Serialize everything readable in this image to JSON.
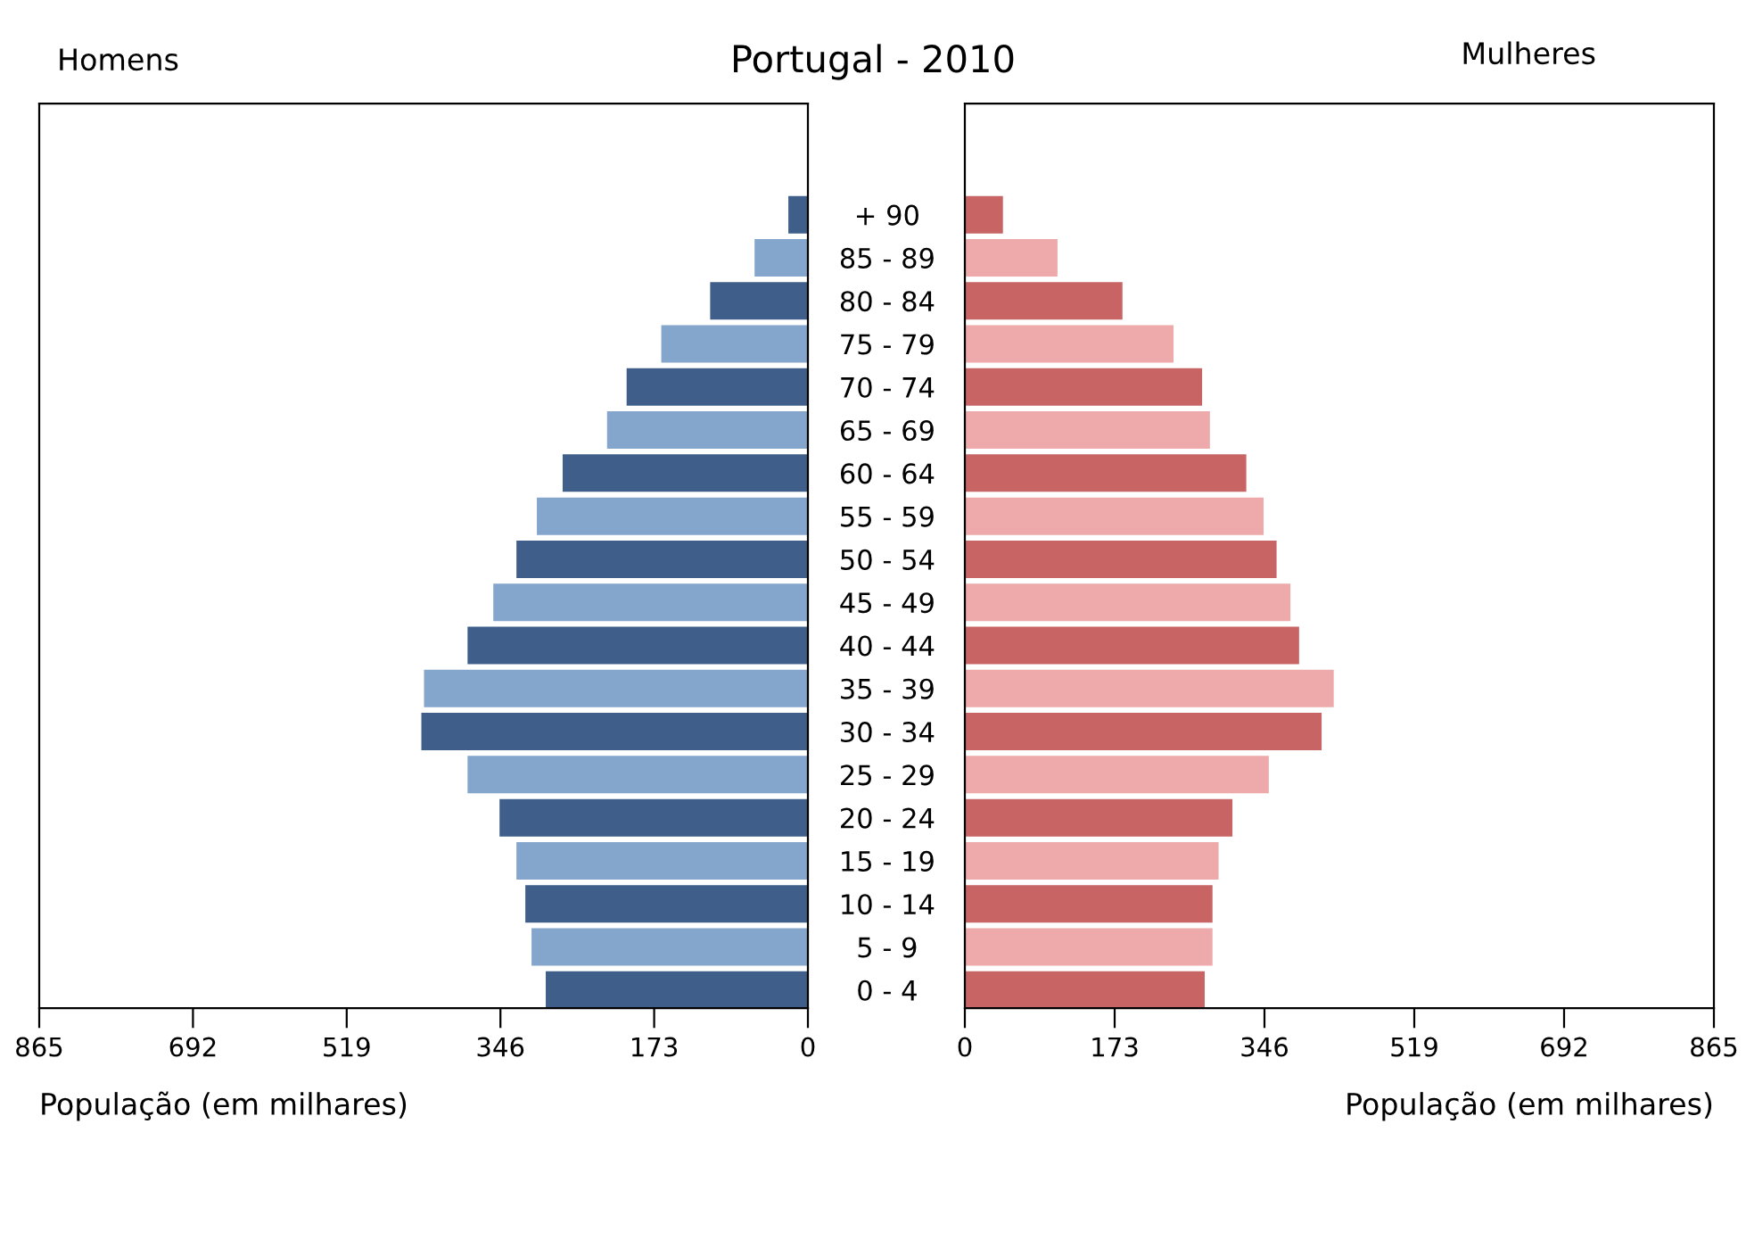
{
  "chart_data": [
    {
      "type": "bar",
      "orientation": "horizontal",
      "title": "Portugal - 2010",
      "annotations": [
        "Homens"
      ],
      "xlabel": "População (em milhares)",
      "categories": [
        "+ 90",
        "85 - 89",
        "80 - 84",
        "75 - 79",
        "70 - 74",
        "65 - 69",
        "60 - 64",
        "55 - 59",
        "50 - 54",
        "45 - 49",
        "40 - 44",
        "35 - 39",
        "30 - 34",
        "25 - 29",
        "20 - 24",
        "15 - 19",
        "10 - 14",
        "5 - 9",
        "0 - 4"
      ],
      "values": [
        22,
        60,
        110,
        165,
        204,
        226,
        276,
        305,
        328,
        354,
        383,
        432,
        435,
        383,
        347,
        328,
        318,
        311,
        295
      ],
      "colors": [
        "#3f5f8a",
        "#84a5cc",
        "#3f5f8a",
        "#84a5cc",
        "#3f5f8a",
        "#84a5cc",
        "#3f5f8a",
        "#84a5cc",
        "#3f5f8a",
        "#84a5cc",
        "#3f5f8a",
        "#84a5cc",
        "#3f5f8a",
        "#84a5cc",
        "#3f5f8a",
        "#84a5cc",
        "#3f5f8a",
        "#84a5cc",
        "#3f5f8a"
      ],
      "xlim": [
        865,
        0
      ],
      "xticks": [
        865,
        692,
        519,
        346,
        173,
        0
      ],
      "grid": false,
      "legend": false
    },
    {
      "type": "bar",
      "orientation": "horizontal",
      "annotations": [
        "Mulheres"
      ],
      "xlabel": "População (em milhares)",
      "tick_labels": "x",
      "categories": [
        null,
        null,
        null,
        null,
        null,
        null,
        null,
        null,
        null,
        null,
        null,
        null,
        null,
        null,
        null,
        null,
        null,
        null,
        null
      ],
      "values": [
        44,
        107,
        182,
        241,
        274,
        283,
        325,
        345,
        360,
        376,
        386,
        426,
        412,
        351,
        309,
        293,
        286,
        286,
        277
      ],
      "colors": [
        "#c86464",
        "#eeaaaa",
        "#c86464",
        "#eeaaaa",
        "#c86464",
        "#eeaaaa",
        "#c86464",
        "#eeaaaa",
        "#c86464",
        "#eeaaaa",
        "#c86464",
        "#eeaaaa",
        "#c86464",
        "#eeaaaa",
        "#c86464",
        "#eeaaaa",
        "#c86464",
        "#eeaaaa",
        "#c86464"
      ],
      "xlim": [
        0,
        865
      ],
      "xticks": [
        0,
        173,
        346,
        519,
        692,
        865
      ],
      "grid": false,
      "legend": false
    }
  ]
}
